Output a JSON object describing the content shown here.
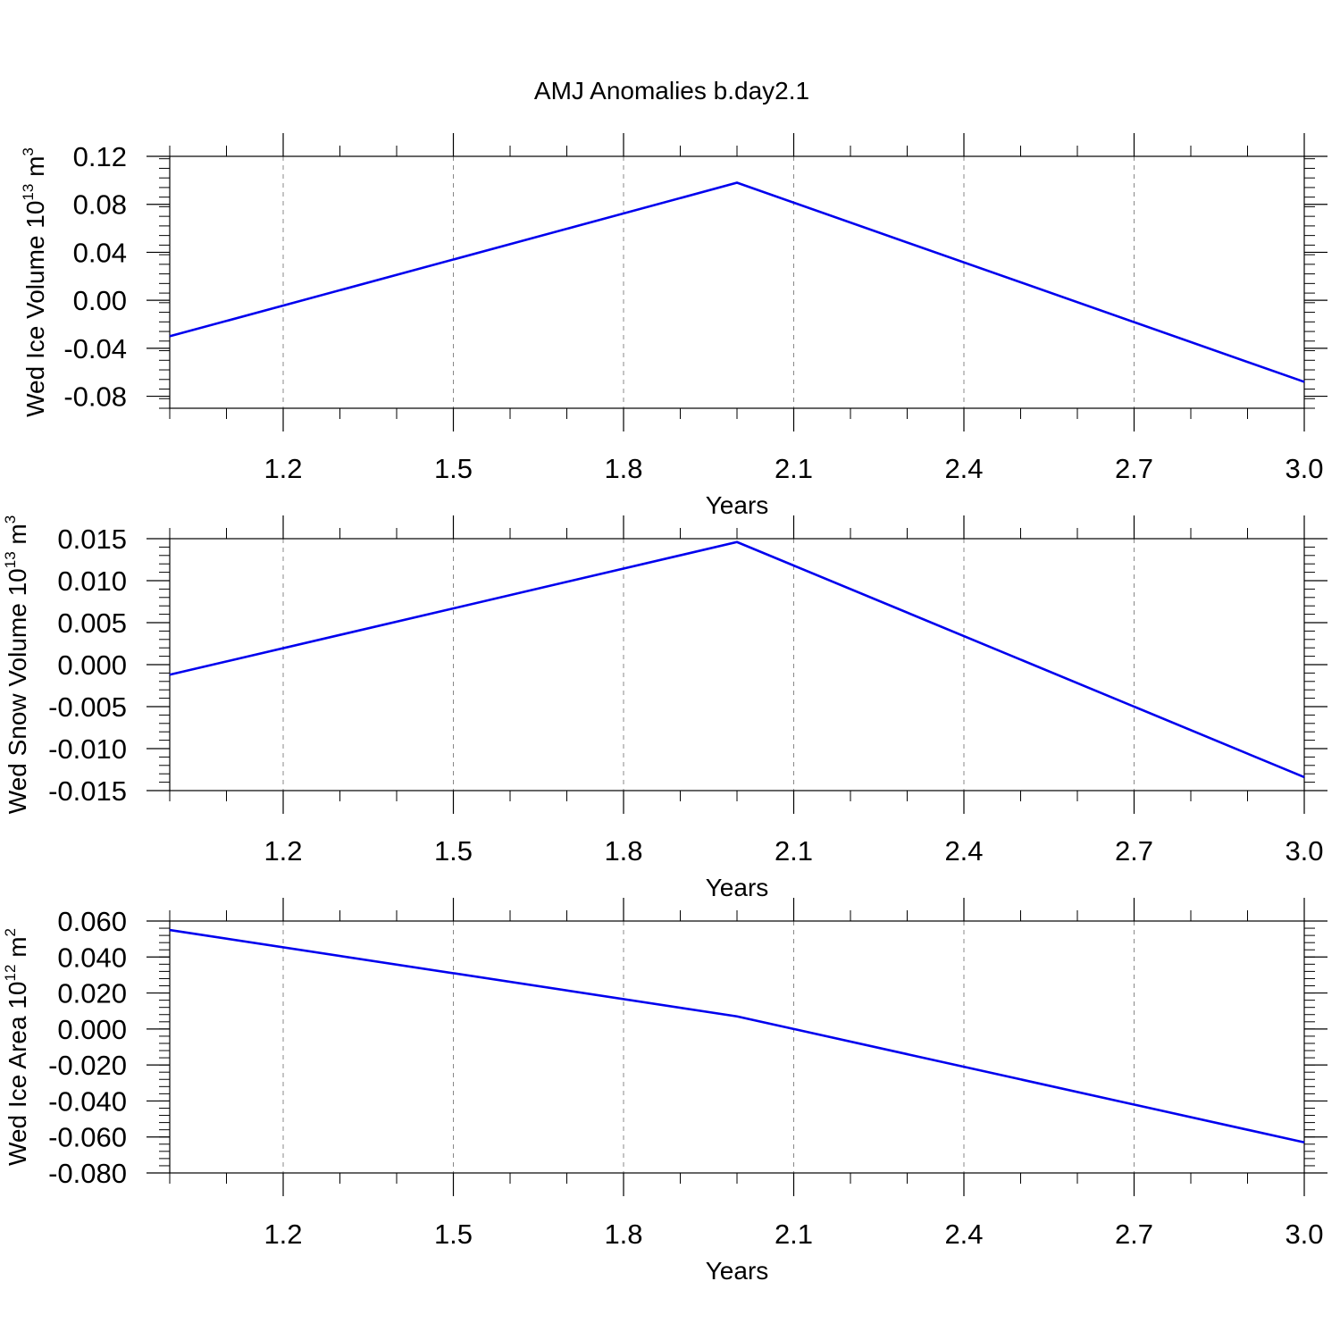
{
  "figure": {
    "title": "AMJ Anomalies b.day2.1"
  },
  "chart_data": [
    {
      "type": "line",
      "title": "",
      "xlabel": "Years",
      "ylabel_main": "Wed Ice Volume 10",
      "ylabel_sup": "13",
      "ylabel_unit": " m",
      "ylabel_unit_sup": "3",
      "xlim": [
        1.0,
        3.0
      ],
      "ylim": [
        -0.09,
        0.12
      ],
      "xticks": [
        1.2,
        1.5,
        1.8,
        2.1,
        2.4,
        2.7,
        3.0
      ],
      "xtick_labels": [
        "1.2",
        "1.5",
        "1.8",
        "2.1",
        "2.4",
        "2.7",
        "3.0"
      ],
      "yticks": [
        -0.08,
        -0.04,
        0.0,
        0.04,
        0.08,
        0.12
      ],
      "ytick_labels": [
        "-0.08",
        "-0.04",
        "0.00",
        "0.04",
        "0.08",
        "0.12"
      ],
      "grid": "vertical dashed",
      "color": "#0000ee",
      "series": [
        {
          "x": [
            1.0,
            2.0,
            3.0
          ],
          "y": [
            -0.03,
            0.098,
            -0.068
          ]
        }
      ]
    },
    {
      "type": "line",
      "title": "",
      "xlabel": "Years",
      "ylabel_main": "Wed Snow Volume 10",
      "ylabel_sup": "13",
      "ylabel_unit": " m",
      "ylabel_unit_sup": "3",
      "xlim": [
        1.0,
        3.0
      ],
      "ylim": [
        -0.015,
        0.015
      ],
      "xticks": [
        1.2,
        1.5,
        1.8,
        2.1,
        2.4,
        2.7,
        3.0
      ],
      "xtick_labels": [
        "1.2",
        "1.5",
        "1.8",
        "2.1",
        "2.4",
        "2.7",
        "3.0"
      ],
      "yticks": [
        -0.015,
        -0.01,
        -0.005,
        0.0,
        0.005,
        0.01,
        0.015
      ],
      "ytick_labels": [
        "-0.015",
        "-0.010",
        "-0.005",
        "0.000",
        "0.005",
        "0.010",
        "0.015"
      ],
      "grid": "vertical dashed",
      "color": "#0000ee",
      "series": [
        {
          "x": [
            1.0,
            2.0,
            3.0
          ],
          "y": [
            -0.0012,
            0.0146,
            -0.0134
          ]
        }
      ]
    },
    {
      "type": "line",
      "title": "",
      "xlabel": "Years",
      "ylabel_main": "Wed Ice Area 10",
      "ylabel_sup": "12",
      "ylabel_unit": " m",
      "ylabel_unit_sup": "2",
      "xlim": [
        1.0,
        3.0
      ],
      "ylim": [
        -0.08,
        0.06
      ],
      "xticks": [
        1.2,
        1.5,
        1.8,
        2.1,
        2.4,
        2.7,
        3.0
      ],
      "xtick_labels": [
        "1.2",
        "1.5",
        "1.8",
        "2.1",
        "2.4",
        "2.7",
        "3.0"
      ],
      "yticks": [
        -0.08,
        -0.06,
        -0.04,
        -0.02,
        0.0,
        0.02,
        0.04,
        0.06
      ],
      "ytick_labels": [
        "-0.080",
        "-0.060",
        "-0.040",
        "-0.020",
        "0.000",
        "0.020",
        "0.040",
        "0.060"
      ],
      "grid": "vertical dashed",
      "color": "#0000ee",
      "series": [
        {
          "x": [
            1.0,
            2.0,
            3.0
          ],
          "y": [
            0.055,
            0.007,
            -0.063
          ]
        }
      ]
    }
  ]
}
